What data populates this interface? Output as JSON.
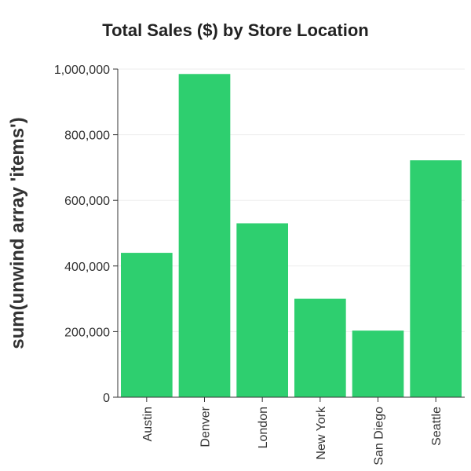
{
  "chart_data": {
    "type": "bar",
    "title": "Total Sales ($) by Store Location",
    "xlabel": "",
    "ylabel": "sum(unwind array 'items')",
    "categories": [
      "Austin",
      "Denver",
      "London",
      "New York",
      "San Diego",
      "Seattle"
    ],
    "values": [
      440000,
      985000,
      530000,
      300000,
      203000,
      722000
    ],
    "ylim": [
      0,
      1000000
    ],
    "yticks": [
      0,
      200000,
      400000,
      600000,
      800000,
      1000000
    ],
    "ytick_labels": [
      "0",
      "200,000",
      "400,000",
      "600,000",
      "800,000",
      "1,000,000"
    ],
    "grid": true,
    "legend": "none",
    "colors": {
      "bar": "#2ecf6f",
      "grid": "#eeeeee",
      "axis": "#333333"
    }
  }
}
